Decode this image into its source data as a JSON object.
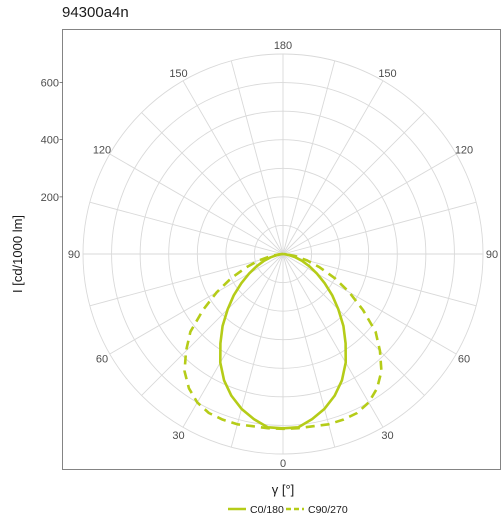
{
  "chart_data": {
    "type": "polar",
    "title": "94300a4n",
    "xlabel": "γ [°]",
    "ylabel": "I [cd/1000 lm]",
    "radial_ticks": [
      "200",
      "400",
      "600"
    ],
    "rmax": 700,
    "angle_labels": [
      {
        "text": "180",
        "angle": 180,
        "side": "top"
      },
      {
        "text": "150",
        "angle": 150,
        "side": "left"
      },
      {
        "text": "150",
        "angle": 150,
        "side": "right"
      },
      {
        "text": "120",
        "angle": 120,
        "side": "left"
      },
      {
        "text": "120",
        "angle": 120,
        "side": "right"
      },
      {
        "text": "90",
        "angle": 90,
        "side": "left"
      },
      {
        "text": "90",
        "angle": 90,
        "side": "right"
      },
      {
        "text": "60",
        "angle": 60,
        "side": "left"
      },
      {
        "text": "60",
        "angle": 60,
        "side": "right"
      },
      {
        "text": "30",
        "angle": 30,
        "side": "left"
      },
      {
        "text": "30",
        "angle": 30,
        "side": "right"
      },
      {
        "text": "0",
        "angle": 0,
        "side": "bottom"
      }
    ],
    "series": [
      {
        "name": "C0/180",
        "dash": "solid",
        "gamma": [
          0,
          5,
          10,
          15,
          20,
          25,
          30,
          35,
          40,
          45,
          50,
          55,
          60,
          65,
          70,
          75,
          80,
          85,
          90
        ],
        "intensity": [
          610,
          609,
          587,
          561,
          528,
          488,
          439,
          382,
          329,
          274,
          225,
          178,
          137,
          102,
          72,
          45,
          22,
          7,
          0
        ]
      },
      {
        "name": "C90/270",
        "dash": "dashed",
        "gamma": [
          0,
          5,
          10,
          15,
          20,
          25,
          30,
          35,
          40,
          45,
          50,
          55,
          60,
          65,
          70,
          75,
          80,
          85,
          90
        ],
        "intensity": [
          612,
          612,
          612,
          617,
          617,
          614,
          600,
          574,
          536,
          480,
          423,
          342,
          268,
          200,
          137,
          88,
          46,
          15,
          0
        ]
      }
    ],
    "color": "#b5cc18",
    "grid": true,
    "legend_position": "bottom"
  }
}
